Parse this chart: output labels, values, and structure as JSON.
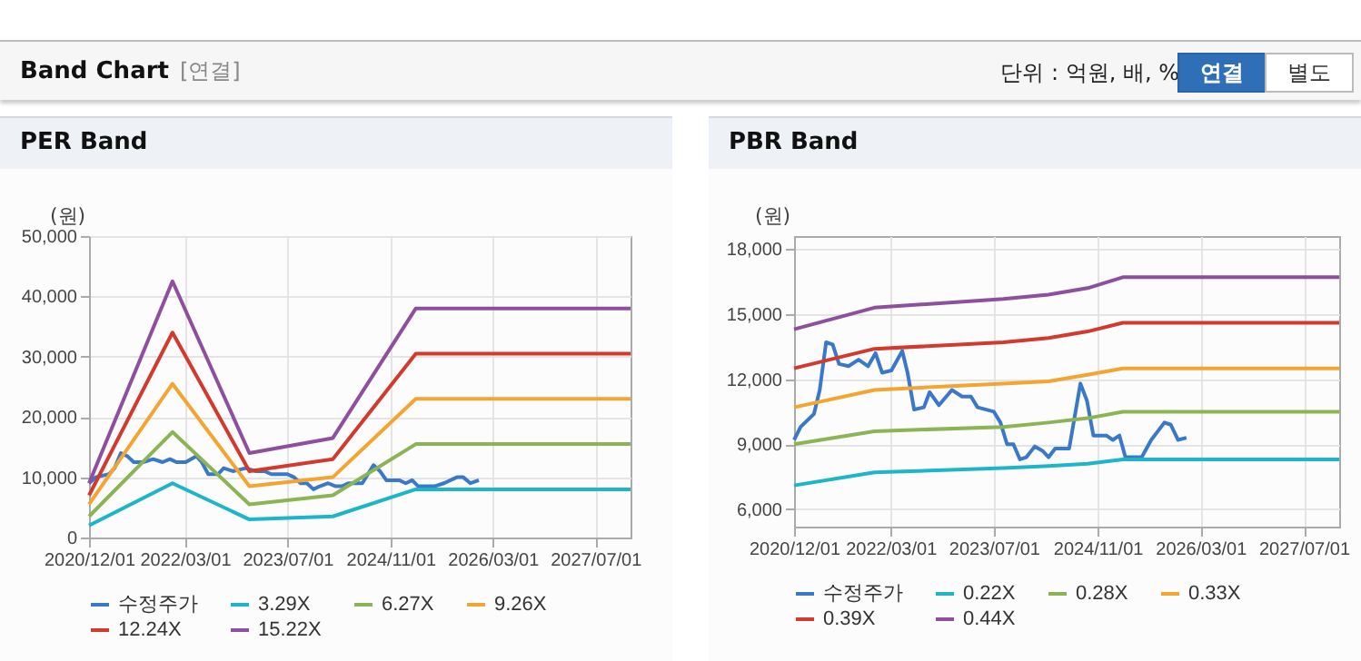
{
  "chart_data": [
    {
      "type": "other",
      "title": "Band Chart",
      "subtitle": "[연결]",
      "annotations": [
        "단위 : 억원, 배, %",
        "연결",
        "별도"
      ]
    },
    {
      "type": "line",
      "title": "PER Band",
      "ylabel": "(원)",
      "x": [
        "2020-12-01",
        "2022-01-01",
        "2023-01-01",
        "2024-02-01",
        "2025-03-01",
        "2027-12-15"
      ],
      "xlim": [
        "2020-12-01",
        "2027-12-15"
      ],
      "xticks": [
        {
          "value": "2020-12-01",
          "label": "2020/12/01"
        },
        {
          "value": "2022-03-01",
          "label": "2022/03/01"
        },
        {
          "value": "2023-07-01",
          "label": "2023/07/01"
        },
        {
          "value": "2024-11-01",
          "label": "2024/11/01"
        },
        {
          "value": "2026-03-01",
          "label": "2026/03/01"
        },
        {
          "value": "2027-07-01",
          "label": "2027/07/01"
        }
      ],
      "ylim": [
        0,
        50000
      ],
      "yticks": [
        {
          "value": 0,
          "label": "0"
        },
        {
          "value": 10000,
          "label": "10,000"
        },
        {
          "value": 20000,
          "label": "20,000"
        },
        {
          "value": 30000,
          "label": "30,000"
        },
        {
          "value": 40000,
          "label": "40,000"
        },
        {
          "value": 50000,
          "label": "50,000"
        }
      ],
      "grid": true,
      "legend": "bottom",
      "series": [
        {
          "name": "수정주가",
          "color": "#3a78c9",
          "x": [
            "2020-12-01",
            "2021-01-01",
            "2021-03-05",
            "2021-04-01",
            "2021-05-01",
            "2021-06-01",
            "2021-07-01",
            "2021-08-15",
            "2021-10-01",
            "2021-11-15",
            "2021-12-20",
            "2022-01-20",
            "2022-03-05",
            "2022-04-25",
            "2022-05-20",
            "2022-06-20",
            "2022-08-05",
            "2022-09-01",
            "2022-10-15",
            "2022-12-15",
            "2023-02-01",
            "2023-03-15",
            "2023-04-15",
            "2023-07-01",
            "2023-08-01",
            "2023-09-01",
            "2023-10-01",
            "2023-11-01",
            "2023-12-01",
            "2024-01-10",
            "2024-02-15",
            "2024-03-15",
            "2024-04-15",
            "2024-05-15",
            "2024-06-20",
            "2024-08-12",
            "2024-09-12",
            "2024-10-12",
            "2024-12-12",
            "2025-01-12",
            "2025-02-12",
            "2025-03-12",
            "2025-05-28",
            "2025-07-12",
            "2025-09-12",
            "2025-10-12",
            "2025-11-15",
            "2025-12-25"
          ],
          "values": [
            9000,
            10000,
            10500,
            11500,
            14000,
            13500,
            12500,
            12500,
            13000,
            12500,
            13000,
            12500,
            12500,
            13500,
            12500,
            10500,
            10500,
            11500,
            11000,
            11500,
            11000,
            11000,
            10500,
            10500,
            10000,
            9000,
            9000,
            8000,
            8500,
            9000,
            8500,
            8500,
            9000,
            9000,
            9000,
            12000,
            11000,
            9500,
            9500,
            9000,
            9500,
            8500,
            8500,
            9000,
            10000,
            10000,
            9000,
            9500
          ]
        },
        {
          "name": "3.29X",
          "color": "#1cb5c9",
          "values": [
            2000,
            9000,
            3000,
            3500,
            8000,
            8000
          ]
        },
        {
          "name": "6.27X",
          "color": "#8cb454",
          "values": [
            3500,
            17500,
            5500,
            7000,
            15500,
            15500
          ]
        },
        {
          "name": "9.26X",
          "color": "#f4a531",
          "values": [
            5500,
            25500,
            8500,
            10000,
            23000,
            23000
          ]
        },
        {
          "name": "12.24X",
          "color": "#d23a2e",
          "values": [
            7000,
            34000,
            11000,
            13000,
            30500,
            30500
          ]
        },
        {
          "name": "15.22X",
          "color": "#8e4f9e",
          "values": [
            9000,
            42500,
            14000,
            16500,
            38000,
            38000
          ]
        }
      ]
    },
    {
      "type": "line",
      "title": "PBR Band",
      "ylabel": "(원)",
      "x": [
        "2020-12-01",
        "2021-12-15",
        "2023-08-15",
        "2024-03-15",
        "2024-09-15",
        "2025-02-28",
        "2027-12-15"
      ],
      "xlim": [
        "2020-12-01",
        "2027-12-15"
      ],
      "xticks": [
        {
          "value": "2020-12-01",
          "label": "2020/12/01"
        },
        {
          "value": "2022-03-01",
          "label": "2022/03/01"
        },
        {
          "value": "2023-07-01",
          "label": "2023/07/01"
        },
        {
          "value": "2024-11-01",
          "label": "2024/11/01"
        },
        {
          "value": "2026-03-01",
          "label": "2026/03/01"
        },
        {
          "value": "2027-07-01",
          "label": "2027/07/01"
        }
      ],
      "ylim": [
        5200,
        18600
      ],
      "yticks": [
        {
          "value": 6000,
          "label": "6,000"
        },
        {
          "value": 9000,
          "label": "9,000"
        },
        {
          "value": 12000,
          "label": "12,000"
        },
        {
          "value": 15000,
          "label": "15,000"
        },
        {
          "value": 18000,
          "label": "18,000"
        }
      ],
      "grid": true,
      "legend": "bottom",
      "series": [
        {
          "name": "수정주가",
          "color": "#3a78c9",
          "x": [
            "2020-12-01",
            "2021-01-01",
            "2021-03-05",
            "2021-04-01",
            "2021-05-01",
            "2021-06-01",
            "2021-07-01",
            "2021-08-15",
            "2021-10-01",
            "2021-11-15",
            "2021-12-20",
            "2022-01-20",
            "2022-03-05",
            "2022-04-25",
            "2022-05-20",
            "2022-06-20",
            "2022-08-05",
            "2022-09-01",
            "2022-10-15",
            "2022-12-15",
            "2023-02-01",
            "2023-03-15",
            "2023-04-15",
            "2023-07-01",
            "2023-08-01",
            "2023-09-01",
            "2023-10-01",
            "2023-11-01",
            "2023-12-01",
            "2024-01-10",
            "2024-02-15",
            "2024-03-15",
            "2024-04-15",
            "2024-05-15",
            "2024-06-20",
            "2024-08-12",
            "2024-09-12",
            "2024-10-12",
            "2024-12-12",
            "2025-01-12",
            "2025-02-12",
            "2025-03-12",
            "2025-05-28",
            "2025-07-12",
            "2025-09-12",
            "2025-10-12",
            "2025-11-15",
            "2025-12-25"
          ],
          "values": [
            9200,
            9800,
            10400,
            11500,
            13700,
            13600,
            12700,
            12600,
            12900,
            12600,
            13200,
            12300,
            12400,
            13300,
            12300,
            10600,
            10700,
            11400,
            10800,
            11500,
            11200,
            11200,
            10700,
            10500,
            10000,
            9000,
            9000,
            8300,
            8400,
            8900,
            8700,
            8400,
            8800,
            8800,
            8800,
            11800,
            11000,
            9400,
            9400,
            9200,
            9400,
            8400,
            8400,
            9200,
            10000,
            9900,
            9200,
            9300
          ]
        },
        {
          "name": "0.22X",
          "color": "#1cb5c9",
          "values": [
            7100,
            7700,
            7900,
            8000,
            8100,
            8300,
            8300
          ]
        },
        {
          "name": "0.28X",
          "color": "#8cb454",
          "values": [
            9000,
            9600,
            9800,
            10000,
            10200,
            10500,
            10500
          ]
        },
        {
          "name": "0.33X",
          "color": "#f4a531",
          "values": [
            10700,
            11500,
            11800,
            11900,
            12200,
            12500,
            12500
          ]
        },
        {
          "name": "0.39X",
          "color": "#d23a2e",
          "values": [
            12500,
            13400,
            13700,
            13900,
            14200,
            14600,
            14600
          ]
        },
        {
          "name": "0.44X",
          "color": "#8e4f9e",
          "values": [
            14300,
            15300,
            15700,
            15900,
            16200,
            16700,
            16700
          ]
        }
      ]
    }
  ]
}
